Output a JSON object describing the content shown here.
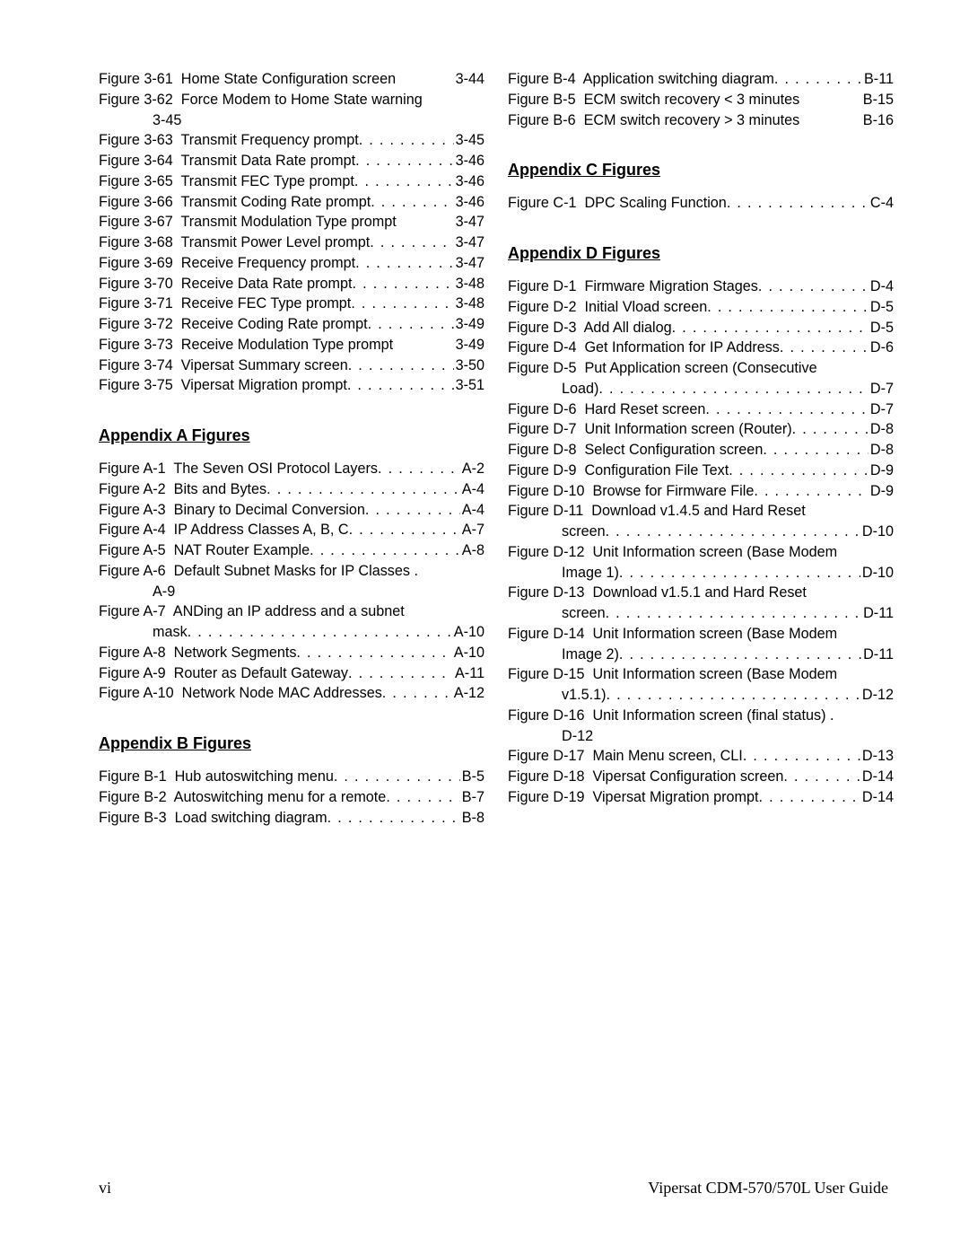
{
  "left": {
    "group1": [
      {
        "fig": "Figure 3-61",
        "title": "Home State Configuration screen",
        "pg": "3-44",
        "noleader": true
      },
      {
        "fig": "Figure 3-62",
        "title": "Force Modem to Home State warning",
        "cont": "3-45"
      },
      {
        "fig": "Figure 3-63",
        "title": "Transmit Frequency prompt",
        "pg": "3-45"
      },
      {
        "fig": "Figure 3-64",
        "title": "Transmit Data Rate prompt",
        "pg": "3-46"
      },
      {
        "fig": "Figure 3-65",
        "title": "Transmit FEC Type prompt",
        "pg": "3-46"
      },
      {
        "fig": "Figure 3-66",
        "title": "Transmit Coding Rate prompt",
        "pg": "3-46"
      },
      {
        "fig": "Figure 3-67",
        "title": "Transmit Modulation Type prompt",
        "pg": "3-47",
        "noleader": true
      },
      {
        "fig": "Figure 3-68",
        "title": "Transmit Power Level prompt",
        "pg": "3-47"
      },
      {
        "fig": "Figure 3-69",
        "title": "Receive Frequency prompt",
        "pg": "3-47"
      },
      {
        "fig": "Figure 3-70",
        "title": "Receive Data Rate prompt",
        "pg": "3-48"
      },
      {
        "fig": "Figure 3-71",
        "title": "Receive FEC Type prompt",
        "pg": "3-48"
      },
      {
        "fig": "Figure 3-72",
        "title": "Receive Coding Rate prompt",
        "pg": "3-49"
      },
      {
        "fig": "Figure 3-73",
        "title": "Receive Modulation Type prompt",
        "pg": "3-49",
        "tight": true
      },
      {
        "fig": "Figure 3-74",
        "title": "Vipersat Summary screen",
        "pg": "3-50"
      },
      {
        "fig": "Figure 3-75",
        "title": "Vipersat Migration prompt",
        "pg": "3-51"
      }
    ],
    "sectionA": "Appendix A Figures",
    "groupA": [
      {
        "fig": "Figure A-1",
        "title": "The Seven OSI Protocol Layers",
        "pg": "A-2"
      },
      {
        "fig": "Figure A-2",
        "title": "Bits and Bytes",
        "pg": "A-4"
      },
      {
        "fig": "Figure A-3",
        "title": "Binary to Decimal Conversion",
        "pg": "A-4"
      },
      {
        "fig": "Figure A-4",
        "title": "IP Address Classes A, B, C",
        "pg": "A-7"
      },
      {
        "fig": "Figure A-5",
        "title": "NAT Router Example",
        "pg": "A-8"
      },
      {
        "fig": "Figure A-6",
        "title": "Default Subnet Masks for IP Classes",
        "cont": "A-9",
        "contplain": true
      },
      {
        "fig": "Figure A-7",
        "title": "ANDing an IP address and a subnet",
        "contlabel": "mask",
        "contpg": "A-10"
      },
      {
        "fig": "Figure A-8",
        "title": "Network Segments",
        "pg": "A-10"
      },
      {
        "fig": "Figure A-9",
        "title": "Router as Default Gateway",
        "pg": "A-11"
      },
      {
        "fig": "Figure A-10",
        "title": "Network Node MAC Addresses",
        "pg": "A-12",
        "spacebefore": true
      }
    ],
    "sectionB": "Appendix B Figures",
    "groupB": [
      {
        "fig": "Figure B-1",
        "title": "Hub autoswitching menu",
        "pg": "B-5"
      },
      {
        "fig": "Figure B-2",
        "title": "Autoswitching menu for a remote",
        "pg": "B-7",
        "spacebefore": true
      },
      {
        "fig": "Figure B-3",
        "title": "Load switching diagram",
        "pg": "B-8"
      }
    ]
  },
  "right": {
    "groupBcont": [
      {
        "fig": "Figure B-4",
        "title": "Application switching diagram",
        "pg": "B-11"
      },
      {
        "fig": "Figure B-5",
        "title": "ECM switch recovery < 3 minutes",
        "pg": "B-15",
        "tight": true
      },
      {
        "fig": "Figure B-6",
        "title": "ECM switch recovery > 3 minutes",
        "pg": "B-16",
        "tight": true
      }
    ],
    "sectionC": "Appendix C Figures",
    "groupC": [
      {
        "fig": "Figure C-1",
        "title": "DPC Scaling Function",
        "pg": "C-4"
      }
    ],
    "sectionD": "Appendix D Figures",
    "groupD": [
      {
        "fig": "Figure D-1",
        "title": "Firmware Migration Stages",
        "pg": "D-4"
      },
      {
        "fig": "Figure D-2",
        "title": "Initial Vload screen",
        "pg": "D-5"
      },
      {
        "fig": "Figure D-3",
        "title": "Add All dialog",
        "pg": "D-5"
      },
      {
        "fig": "Figure D-4",
        "title": "Get Information for IP Address",
        "pg": "D-6"
      },
      {
        "fig": "Figure D-5",
        "title": "Put Application screen (Consecutive",
        "contlabel": "Load)",
        "contpg": "D-7"
      },
      {
        "fig": "Figure D-6",
        "title": "Hard Reset screen",
        "pg": "D-7"
      },
      {
        "fig": "Figure D-7",
        "title": "Unit Information screen (Router)",
        "pg": "D-8",
        "spacebefore": true
      },
      {
        "fig": "Figure D-8",
        "title": "Select Configuration screen",
        "pg": "D-8"
      },
      {
        "fig": "Figure D-9",
        "title": "Configuration File Text",
        "pg": "D-9"
      },
      {
        "fig": "Figure D-10",
        "title": "Browse for Firmware File",
        "pg": "D-9"
      },
      {
        "fig": "Figure D-11",
        "title": "Download v1.4.5 and Hard Reset",
        "contlabel": "screen",
        "contpg": "D-10"
      },
      {
        "fig": "Figure D-12",
        "title": "Unit Information screen (Base Modem",
        "contlabel": "Image 1)",
        "contpg": "D-10"
      },
      {
        "fig": "Figure D-13",
        "title": "Download v1.5.1 and Hard Reset",
        "contlabel": "screen",
        "contpg": "D-11"
      },
      {
        "fig": "Figure D-14",
        "title": "Unit Information screen (Base Modem",
        "contlabel": "Image 2)",
        "contpg": "D-11"
      },
      {
        "fig": "Figure D-15",
        "title": "Unit Information screen (Base Modem",
        "contlabel": "v1.5.1)",
        "contpg": "D-12"
      },
      {
        "fig": "Figure D-16",
        "title": "Unit Information screen (final status)",
        "cont": "D-12",
        "contplain": true
      },
      {
        "fig": "Figure D-17",
        "title": "Main Menu screen, CLI",
        "pg": "D-13"
      },
      {
        "fig": "Figure D-18",
        "title": "Vipersat Configuration screen",
        "pg": "D-14",
        "spacebefore": true
      },
      {
        "fig": "Figure D-19",
        "title": "Vipersat Migration prompt",
        "pg": "D-14"
      }
    ]
  },
  "footer": {
    "left": "vi",
    "right": "Vipersat CDM-570/570L User Guide"
  }
}
